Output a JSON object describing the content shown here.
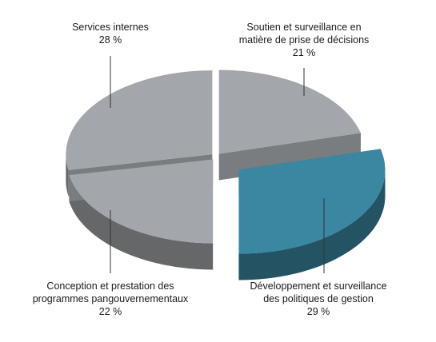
{
  "chart_data": {
    "type": "pie",
    "style": "3d-exploded",
    "slices": [
      {
        "label_lines": [
          "Soutien et surveillance en",
          "matière de prise de décisions"
        ],
        "pct_text": "21 %",
        "value": 21,
        "color": "#a3a6aa",
        "exploded": false
      },
      {
        "label_lines": [
          "Développement et surveillance",
          "des politiques de gestion"
        ],
        "pct_text": "29 %",
        "value": 29,
        "color": "#3a87a2",
        "exploded": true
      },
      {
        "label_lines": [
          "Conception et prestation des",
          "programmes pangouvernementaux"
        ],
        "pct_text": "22 %",
        "value": 22,
        "color": "#a3a6aa",
        "exploded": false
      },
      {
        "label_lines": [
          "Services internes"
        ],
        "pct_text": "28 %",
        "value": 28,
        "color": "#a3a6aa",
        "exploded": false
      }
    ]
  }
}
